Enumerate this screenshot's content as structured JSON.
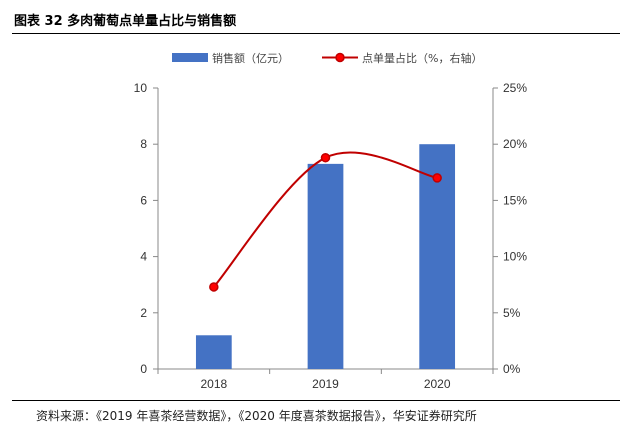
{
  "header": {
    "title": "图表 32 多肉葡萄点单量占比与销售额"
  },
  "footer": {
    "source": "资料来源：《2019 年喜茶经营数据》，《2020 年度喜茶数据报告》，华安证券研究所"
  },
  "chart_data": {
    "type": "bar+line",
    "categories": [
      "2018",
      "2019",
      "2020"
    ],
    "series": [
      {
        "name": "销售额（亿元）",
        "type": "bar",
        "axis": "left",
        "values": [
          1.2,
          7.3,
          8.0
        ],
        "color": "#4472C4"
      },
      {
        "name": "点单量占比（%，右轴）",
        "type": "line",
        "axis": "right",
        "values": [
          7.3,
          18.8,
          17.0
        ],
        "color": "#C00000"
      }
    ],
    "y_left": {
      "min": 0,
      "max": 10,
      "ticks": [
        "0",
        "2",
        "4",
        "6",
        "8",
        "10"
      ]
    },
    "y_right": {
      "min": 0,
      "max": 25,
      "ticks": [
        "0%",
        "5%",
        "10%",
        "15%",
        "20%",
        "25%"
      ]
    },
    "legend_position": "top"
  }
}
